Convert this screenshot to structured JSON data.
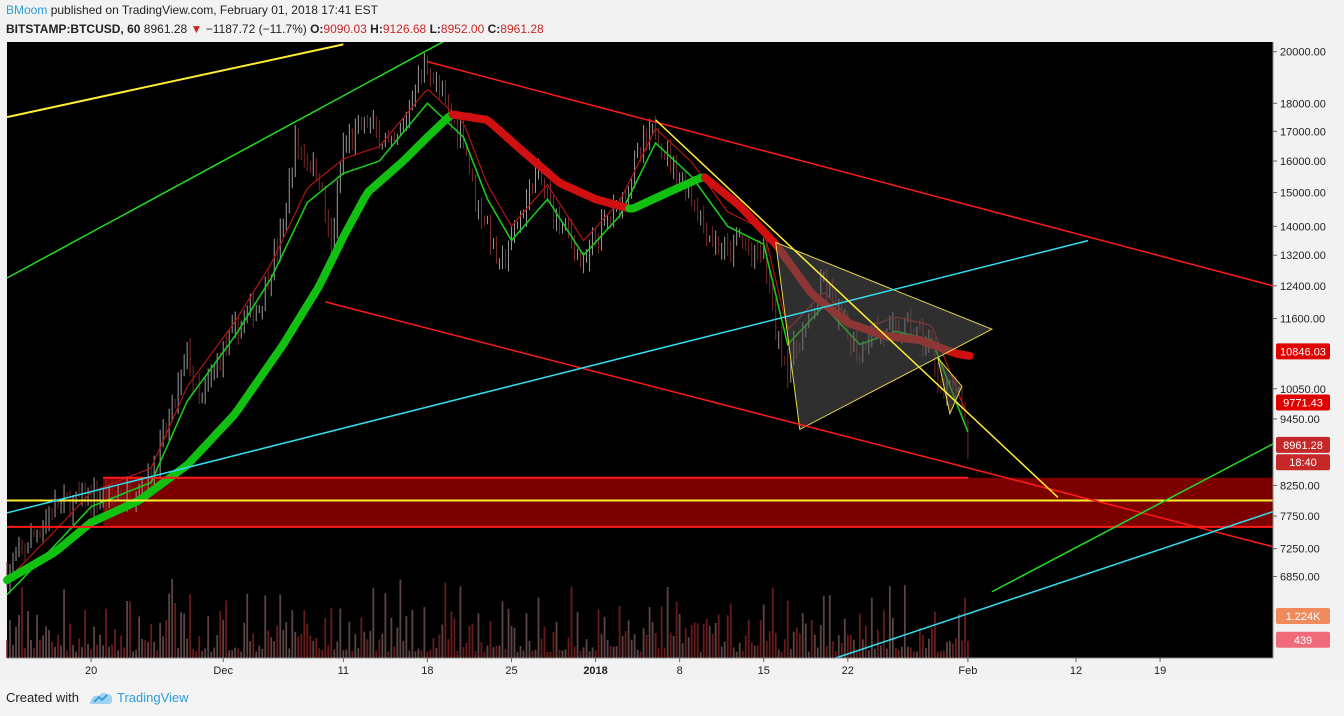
{
  "header": {
    "author": "BMoom",
    "published_text": "published on TradingView.com, February 01, 2018 17:41 EST",
    "symbol": "BITSTAMP:BTCUSD, 60",
    "last_price": "8961.28",
    "change_arrow": "▼",
    "change": "−1187.72 (−11.7%)",
    "o_label": "O:",
    "o_value": "9090.03",
    "h_label": "H:",
    "h_value": "9126.68",
    "l_label": "L:",
    "l_value": "8952.00",
    "c_label": "C:",
    "c_value": "8961.28"
  },
  "footer": {
    "created_with": "Created with",
    "brand": "TradingView"
  },
  "colors": {
    "background": "#000000",
    "bull_candle": "#9a9a9a",
    "bear_candle": "#7a2a2a",
    "red_line": "#ff1a1a",
    "yellow_line": "#ffee33",
    "green_line": "#22dd22",
    "cyan_line": "#33ddee",
    "zone_fill": "#8b0000",
    "triangle_fill": "#555555"
  },
  "chart_data": {
    "type": "candlestick",
    "scale": "log",
    "ylim": [
      5800,
      20400
    ],
    "y_ticks": [
      "20000.00",
      "18000.00",
      "17000.00",
      "16000.00",
      "15000.00",
      "14000.00",
      "13200.00",
      "12400.00",
      "11600.00",
      "10846.03",
      "10050.00",
      "9771.43",
      "9450.00",
      "8961.28",
      "18:40",
      "8250.00",
      "7750.00",
      "7250.00",
      "6850.00",
      "1.224K",
      "439"
    ],
    "price_labels": [
      {
        "text": "10846.03",
        "price": 10846.03,
        "color": "#e00000"
      },
      {
        "text": "9771.43",
        "price": 9771.43,
        "color": "#e00000"
      },
      {
        "text": "8961.28",
        "price": 8961.28,
        "color": "#c62828"
      },
      {
        "text": "18:40",
        "price": 8650,
        "color": "#c62828"
      },
      {
        "text": "1.224K",
        "price": 6320,
        "color": "#f08a5d"
      },
      {
        "text": "439",
        "price": 6020,
        "color": "#ef6b7a"
      }
    ],
    "x_ticks": [
      "20",
      "Dec",
      "11",
      "18",
      "25",
      "2018",
      "8",
      "15",
      "22",
      "Feb",
      "12",
      "19"
    ],
    "x_tick_days": [
      0,
      11,
      21,
      28,
      35,
      42,
      49,
      56,
      63,
      73,
      82,
      89
    ],
    "last_day": 73,
    "xlim": [
      -7,
      98.4
    ],
    "ohlc_anchors": [
      {
        "day": -7,
        "price": 6900
      },
      {
        "day": -5,
        "price": 7400
      },
      {
        "day": -3,
        "price": 7900
      },
      {
        "day": 0,
        "price": 8050
      },
      {
        "day": 3,
        "price": 8100
      },
      {
        "day": 5,
        "price": 8400
      },
      {
        "day": 7,
        "price": 9800
      },
      {
        "day": 8,
        "price": 10800
      },
      {
        "day": 9,
        "price": 9700
      },
      {
        "day": 11,
        "price": 10900
      },
      {
        "day": 13,
        "price": 11700
      },
      {
        "day": 14,
        "price": 11900
      },
      {
        "day": 16,
        "price": 14000
      },
      {
        "day": 17,
        "price": 16600
      },
      {
        "day": 19,
        "price": 15500
      },
      {
        "day": 20,
        "price": 13300
      },
      {
        "day": 21,
        "price": 16500
      },
      {
        "day": 23,
        "price": 17300
      },
      {
        "day": 25,
        "price": 16300
      },
      {
        "day": 26,
        "price": 17100
      },
      {
        "day": 27,
        "price": 18800
      },
      {
        "day": 28,
        "price": 19500
      },
      {
        "day": 29,
        "price": 18400
      },
      {
        "day": 30,
        "price": 17400
      },
      {
        "day": 31,
        "price": 16900
      },
      {
        "day": 32,
        "price": 14800
      },
      {
        "day": 33,
        "price": 14000
      },
      {
        "day": 34,
        "price": 12800
      },
      {
        "day": 35,
        "price": 13600
      },
      {
        "day": 36,
        "price": 14500
      },
      {
        "day": 37,
        "price": 15600
      },
      {
        "day": 39,
        "price": 14100
      },
      {
        "day": 40,
        "price": 13700
      },
      {
        "day": 41,
        "price": 12800
      },
      {
        "day": 42,
        "price": 13700
      },
      {
        "day": 44,
        "price": 14700
      },
      {
        "day": 46,
        "price": 16500
      },
      {
        "day": 47,
        "price": 17100
      },
      {
        "day": 48,
        "price": 16200
      },
      {
        "day": 49,
        "price": 15500
      },
      {
        "day": 50,
        "price": 14900
      },
      {
        "day": 51,
        "price": 14000
      },
      {
        "day": 52,
        "price": 13500
      },
      {
        "day": 53,
        "price": 13200
      },
      {
        "day": 54,
        "price": 13700
      },
      {
        "day": 55,
        "price": 13100
      },
      {
        "day": 56,
        "price": 13400
      },
      {
        "day": 57,
        "price": 11300
      },
      {
        "day": 58,
        "price": 10500
      },
      {
        "day": 59,
        "price": 11100
      },
      {
        "day": 60,
        "price": 11600
      },
      {
        "day": 61,
        "price": 12500
      },
      {
        "day": 62,
        "price": 11800
      },
      {
        "day": 63,
        "price": 11200
      },
      {
        "day": 64,
        "price": 10800
      },
      {
        "day": 65,
        "price": 11400
      },
      {
        "day": 66,
        "price": 11200
      },
      {
        "day": 67,
        "price": 11300
      },
      {
        "day": 68,
        "price": 11400
      },
      {
        "day": 69,
        "price": 11200
      },
      {
        "day": 70,
        "price": 10900
      },
      {
        "day": 71,
        "price": 9900
      },
      {
        "day": 72,
        "price": 10100
      },
      {
        "day": 73,
        "price": 8961
      }
    ],
    "ma_fast_anchors": [
      {
        "day": -7,
        "price": 6600
      },
      {
        "day": -3,
        "price": 7300
      },
      {
        "day": 0,
        "price": 7900
      },
      {
        "day": 5,
        "price": 8300
      },
      {
        "day": 8,
        "price": 9800
      },
      {
        "day": 12,
        "price": 11200
      },
      {
        "day": 15,
        "price": 12600
      },
      {
        "day": 18,
        "price": 14700
      },
      {
        "day": 21,
        "price": 15600
      },
      {
        "day": 24,
        "price": 16000
      },
      {
        "day": 28,
        "price": 18000
      },
      {
        "day": 31,
        "price": 16800
      },
      {
        "day": 33,
        "price": 14800
      },
      {
        "day": 35,
        "price": 13600
      },
      {
        "day": 38,
        "price": 14800
      },
      {
        "day": 41,
        "price": 13200
      },
      {
        "day": 44,
        "price": 14300
      },
      {
        "day": 47,
        "price": 16600
      },
      {
        "day": 50,
        "price": 15500
      },
      {
        "day": 53,
        "price": 14000
      },
      {
        "day": 56,
        "price": 13500
      },
      {
        "day": 58,
        "price": 11000
      },
      {
        "day": 61,
        "price": 11900
      },
      {
        "day": 64,
        "price": 11000
      },
      {
        "day": 67,
        "price": 11300
      },
      {
        "day": 70,
        "price": 11100
      },
      {
        "day": 73,
        "price": 9200
      }
    ],
    "ma_slow_anchors": [
      {
        "day": -7,
        "price": 6800
      },
      {
        "day": -3,
        "price": 7200
      },
      {
        "day": 0,
        "price": 7650
      },
      {
        "day": 4,
        "price": 8000
      },
      {
        "day": 8,
        "price": 8600
      },
      {
        "day": 12,
        "price": 9550
      },
      {
        "day": 16,
        "price": 11000
      },
      {
        "day": 19,
        "price": 12400
      },
      {
        "day": 21,
        "price": 13700
      },
      {
        "day": 23,
        "price": 15000
      },
      {
        "day": 26,
        "price": 16000
      },
      {
        "day": 28,
        "price": 16800
      },
      {
        "day": 30,
        "price": 17600
      },
      {
        "day": 33,
        "price": 17400
      },
      {
        "day": 36,
        "price": 16300
      },
      {
        "day": 39,
        "price": 15300
      },
      {
        "day": 42,
        "price": 14800
      },
      {
        "day": 45,
        "price": 14500
      },
      {
        "day": 48,
        "price": 15000
      },
      {
        "day": 51,
        "price": 15500
      },
      {
        "day": 54,
        "price": 14600
      },
      {
        "day": 57,
        "price": 13500
      },
      {
        "day": 60,
        "price": 12200
      },
      {
        "day": 63,
        "price": 11500
      },
      {
        "day": 66,
        "price": 11200
      },
      {
        "day": 69,
        "price": 11100
      },
      {
        "day": 72,
        "price": 10800
      },
      {
        "day": 73,
        "price": 10750
      }
    ],
    "trendlines": [
      {
        "color": "#ffee33",
        "width": 2,
        "from": {
          "day": -7,
          "price": 17500
        },
        "to": {
          "day": 21,
          "price": 20300
        }
      },
      {
        "color": "#22dd22",
        "width": 1.5,
        "from": {
          "day": -7,
          "price": 12600
        },
        "to": {
          "day": 30,
          "price": 20600
        }
      },
      {
        "color": "#ff1a1a",
        "width": 1.5,
        "from": {
          "day": 28,
          "price": 19600
        },
        "to": {
          "day": 98.4,
          "price": 12400
        }
      },
      {
        "color": "#ff1a1a",
        "width": 1.5,
        "from": {
          "day": 19.5,
          "price": 12000
        },
        "to": {
          "day": 98.4,
          "price": 7280
        }
      },
      {
        "color": "#33ddee",
        "width": 1.5,
        "from": {
          "day": -7,
          "price": 7800
        },
        "to": {
          "day": 83,
          "price": 13600
        }
      },
      {
        "color": "#ffee33",
        "width": 1.5,
        "from": {
          "day": 47,
          "price": 17400
        },
        "to": {
          "day": 80.5,
          "price": 8050
        }
      },
      {
        "color": "#22dd22",
        "width": 1.5,
        "from": {
          "day": 75,
          "price": 6640
        },
        "to": {
          "day": 98.4,
          "price": 8980
        }
      },
      {
        "color": "#33ddee",
        "width": 1.5,
        "from": {
          "day": 62,
          "price": 5800
        },
        "to": {
          "day": 98.4,
          "price": 7820
        }
      }
    ],
    "zones": [
      {
        "color": "#8b0000",
        "from_day": 1,
        "to_day": 98.4,
        "top": 8380,
        "bottom": 7580
      }
    ],
    "level_lines": [
      {
        "color": "#ffee33",
        "price": 8000,
        "from_day": -7,
        "to_day": 98.4
      },
      {
        "color": "#ff1a1a",
        "price": 8380,
        "from_day": 1,
        "to_day": 73
      },
      {
        "color": "#ff1a1a",
        "price": 7580,
        "from_day": -7,
        "to_day": 98.4
      }
    ],
    "triangles": [
      {
        "points": [
          {
            "day": 57,
            "price": 13550
          },
          {
            "day": 59,
            "price": 9250
          },
          {
            "day": 75,
            "price": 11350
          }
        ]
      },
      {
        "points": [
          {
            "day": 70.5,
            "price": 10700
          },
          {
            "day": 71.5,
            "price": 9550
          },
          {
            "day": 72.5,
            "price": 10100
          }
        ]
      }
    ],
    "volume_max": 1400
  }
}
